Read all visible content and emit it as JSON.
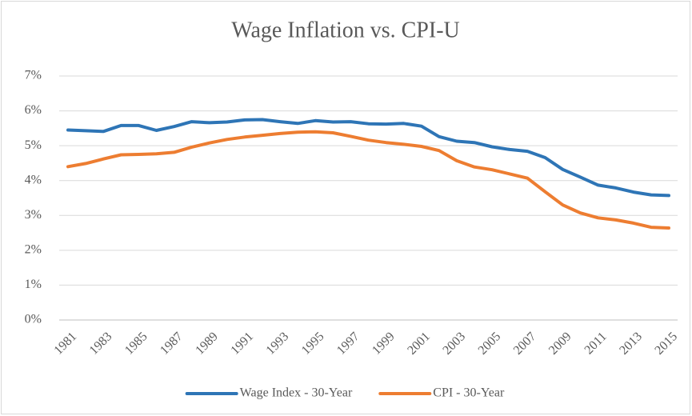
{
  "chart_data": {
    "type": "line",
    "title": "Wage Inflation vs. CPI-U",
    "categories": [
      "1981",
      null,
      "1983",
      null,
      "1985",
      null,
      "1987",
      null,
      "1989",
      null,
      "1991",
      null,
      "1993",
      null,
      "1995",
      null,
      "1997",
      null,
      "1999",
      null,
      "2001",
      null,
      "2003",
      null,
      "2005",
      null,
      "2007",
      null,
      "2009",
      null,
      "2011",
      null,
      "2013",
      null,
      "2015"
    ],
    "series": [
      {
        "name": "Wage Index - 30-Year",
        "color": "#2e75b6",
        "values": [
          5.45,
          5.43,
          5.41,
          5.58,
          5.58,
          5.44,
          5.55,
          5.69,
          5.66,
          5.68,
          5.74,
          5.75,
          5.69,
          5.64,
          5.72,
          5.68,
          5.69,
          5.63,
          5.62,
          5.64,
          5.56,
          5.26,
          5.13,
          5.09,
          4.97,
          4.89,
          4.84,
          4.66,
          4.32,
          4.1,
          3.87,
          3.79,
          3.67,
          3.59,
          3.57
        ]
      },
      {
        "name": "CPI - 30-Year",
        "color": "#ed7d31",
        "values": [
          4.4,
          4.49,
          4.62,
          4.74,
          4.75,
          4.77,
          4.81,
          4.96,
          5.08,
          5.18,
          5.25,
          5.3,
          5.35,
          5.39,
          5.4,
          5.37,
          5.27,
          5.16,
          5.09,
          5.04,
          4.98,
          4.86,
          4.57,
          4.39,
          4.31,
          4.19,
          4.07,
          3.68,
          3.3,
          3.07,
          2.93,
          2.87,
          2.78,
          2.66,
          2.64
        ]
      }
    ],
    "ylim": [
      0,
      7
    ],
    "yticks": [
      {
        "value": 0,
        "label": "0%"
      },
      {
        "value": 1,
        "label": "1%"
      },
      {
        "value": 2,
        "label": "2%"
      },
      {
        "value": 3,
        "label": "3%"
      },
      {
        "value": 4,
        "label": "4%"
      },
      {
        "value": 5,
        "label": "5%"
      },
      {
        "value": 6,
        "label": "6%"
      },
      {
        "value": 7,
        "label": "7%"
      }
    ],
    "grid": true,
    "legend": "bottom"
  }
}
